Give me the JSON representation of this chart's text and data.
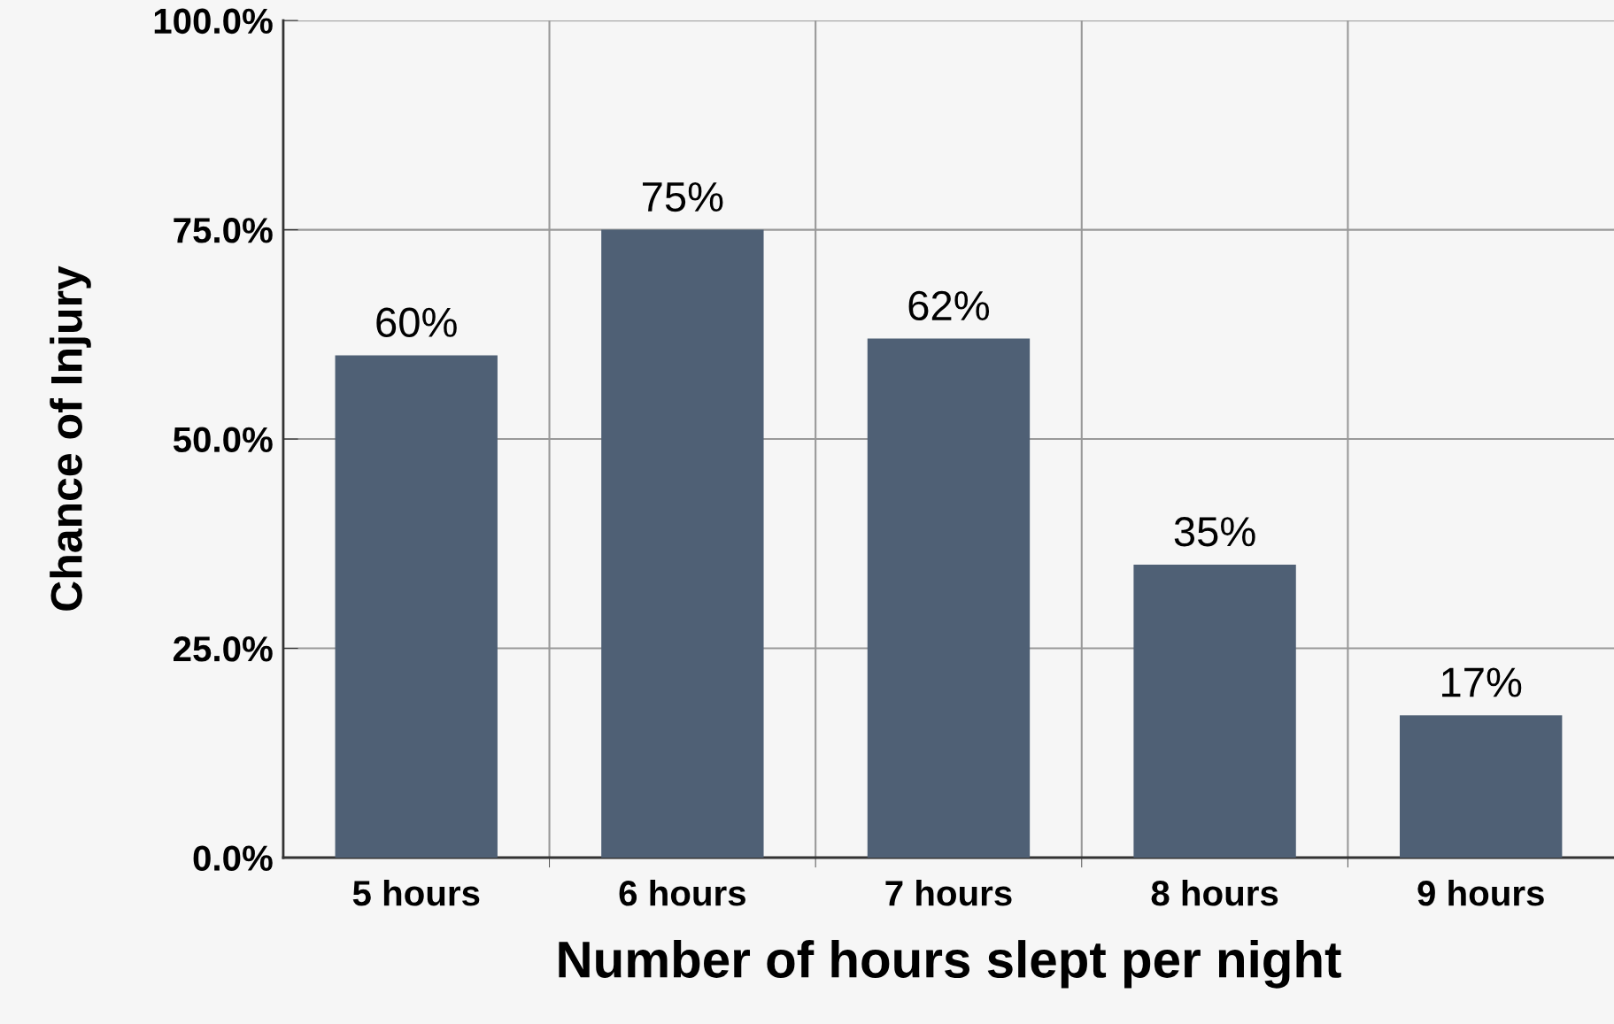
{
  "chart_data": {
    "type": "bar",
    "xlabel": "Number of hours slept per night",
    "ylabel": "Chance of Injury",
    "categories": [
      "5 hours",
      "6 hours",
      "7 hours",
      "8 hours",
      "9 hours"
    ],
    "values": [
      60,
      75,
      62,
      35,
      17
    ],
    "color": "#4f6075",
    "value_labels": [
      "60%",
      "75%",
      "62%",
      "35%",
      "17%"
    ],
    "ylim": [
      0,
      100
    ],
    "yticks": [
      {
        "value": 0,
        "label": "0.0%"
      },
      {
        "value": 25,
        "label": "25.0%"
      },
      {
        "value": 50,
        "label": "50.0%"
      },
      {
        "value": 75,
        "label": "75.0%"
      },
      {
        "value": 100,
        "label": "100.0%"
      }
    ],
    "grid": true
  }
}
